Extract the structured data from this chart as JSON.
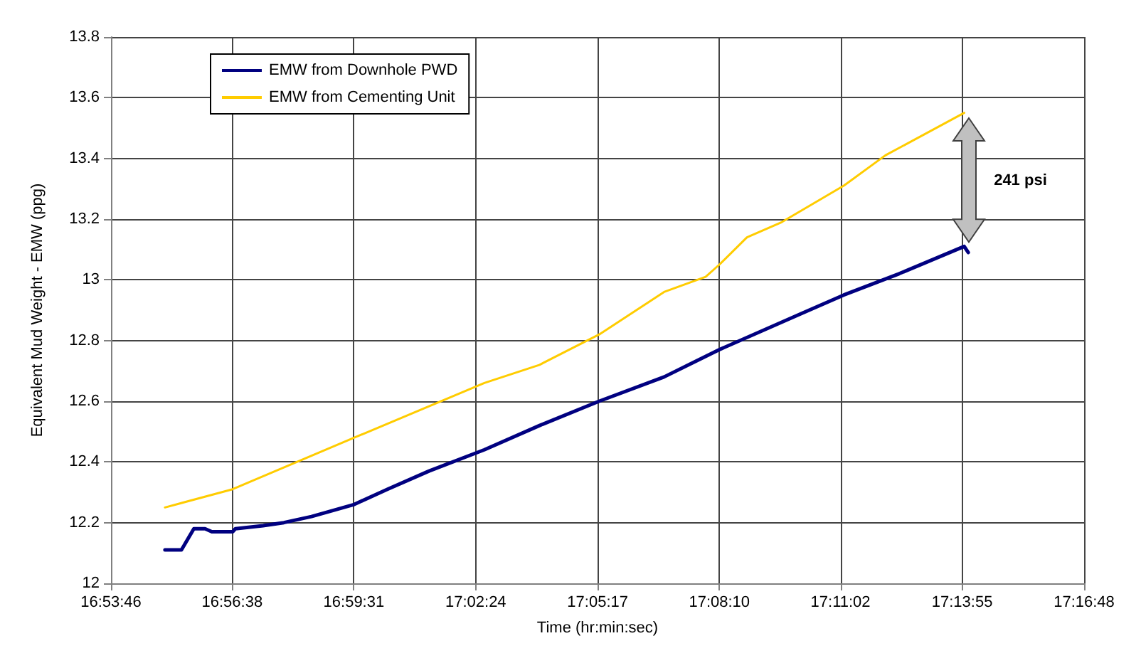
{
  "chart_data": {
    "type": "line",
    "xlabel": "Time (hr:min:sec)",
    "ylabel": "Equivalent Mud Weight - EMW (ppg)",
    "xlim": [
      16.8961,
      17.28
    ],
    "xticks": [
      {
        "value": 16.8961,
        "label": "16:53:46"
      },
      {
        "value": 16.9439,
        "label": "16:56:38"
      },
      {
        "value": 16.9919,
        "label": "16:59:31"
      },
      {
        "value": 17.04,
        "label": "17:02:24"
      },
      {
        "value": 17.0881,
        "label": "17:05:17"
      },
      {
        "value": 17.1361,
        "label": "17:08:10"
      },
      {
        "value": 17.1839,
        "label": "17:11:02"
      },
      {
        "value": 17.2319,
        "label": "17:13:55"
      },
      {
        "value": 17.28,
        "label": "17:16:48"
      }
    ],
    "ylim": [
      12,
      13.8
    ],
    "yticks": [
      12,
      12.2,
      12.4,
      12.6,
      12.8,
      13,
      13.2,
      13.4,
      13.6,
      13.8
    ],
    "grid": true,
    "legend": "top left",
    "marker": "none",
    "line_style": "solid",
    "series": [
      {
        "name": "EMW from Downhole PWD",
        "color": "#000080",
        "x": [
          16.9174,
          16.9239,
          16.9288,
          16.9332,
          16.9359,
          16.9441,
          16.9452,
          16.9561,
          16.9643,
          16.9752,
          16.9921,
          17.0052,
          17.0216,
          17.0434,
          17.0652,
          17.0887,
          17.1143,
          17.1361,
          17.1688,
          17.1852,
          17.207,
          17.2327,
          17.2343
        ],
        "values": [
          12.11,
          12.11,
          12.18,
          12.18,
          12.17,
          12.17,
          12.18,
          12.19,
          12.2,
          12.22,
          12.26,
          12.31,
          12.37,
          12.44,
          12.52,
          12.6,
          12.68,
          12.77,
          12.89,
          12.95,
          13.02,
          13.11,
          13.09
        ]
      },
      {
        "name": "EMW from Cementing Unit",
        "color": "#ffcc00",
        "x": [
          16.9174,
          16.9441,
          16.9921,
          17.0434,
          17.0652,
          17.0887,
          17.1143,
          17.1307,
          17.1361,
          17.147,
          17.1607,
          17.1852,
          17.2016,
          17.2327
        ],
        "values": [
          12.25,
          12.31,
          12.48,
          12.66,
          12.72,
          12.82,
          12.96,
          13.01,
          13.05,
          13.14,
          13.19,
          13.31,
          13.41,
          13.55
        ]
      }
    ],
    "annotations": [
      "241 psi"
    ]
  }
}
